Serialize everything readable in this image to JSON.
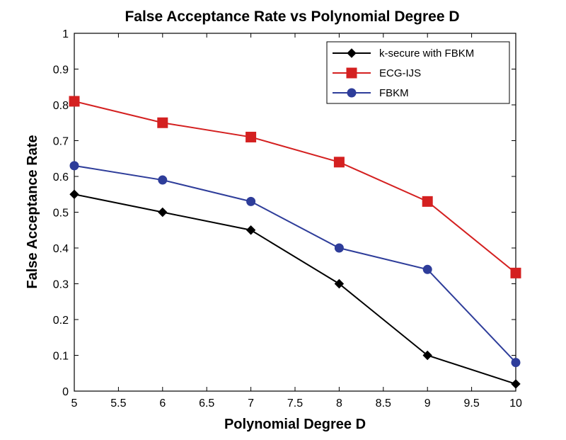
{
  "chart_data": {
    "type": "line",
    "title": "False Acceptance Rate vs Polynomial Degree D",
    "xlabel": "Polynomial Degree D",
    "ylabel": "False Acceptance Rate",
    "xlim": [
      5,
      10
    ],
    "ylim": [
      0,
      1
    ],
    "x_ticks": [
      "5",
      "5.5",
      "6",
      "6.5",
      "7",
      "7.5",
      "8",
      "8.5",
      "9",
      "9.5",
      "10"
    ],
    "y_ticks": [
      "0",
      "0.1",
      "0.2",
      "0.3",
      "0.4",
      "0.5",
      "0.6",
      "0.7",
      "0.8",
      "0.9",
      "1"
    ],
    "grid": false,
    "legend_position": "top-right",
    "x": [
      5,
      6,
      7,
      8,
      9,
      10
    ],
    "series": [
      {
        "name": "k-secure with FBKM",
        "values": [
          0.55,
          0.5,
          0.45,
          0.3,
          0.1,
          0.02
        ],
        "color": "#000000",
        "marker": "diamond"
      },
      {
        "name": "ECG-IJS",
        "values": [
          0.81,
          0.75,
          0.71,
          0.64,
          0.53,
          0.33
        ],
        "color": "#d42020",
        "marker": "square"
      },
      {
        "name": "FBKM",
        "values": [
          0.63,
          0.59,
          0.53,
          0.4,
          0.34,
          0.08
        ],
        "color": "#2e3d9a",
        "marker": "circle"
      }
    ]
  }
}
